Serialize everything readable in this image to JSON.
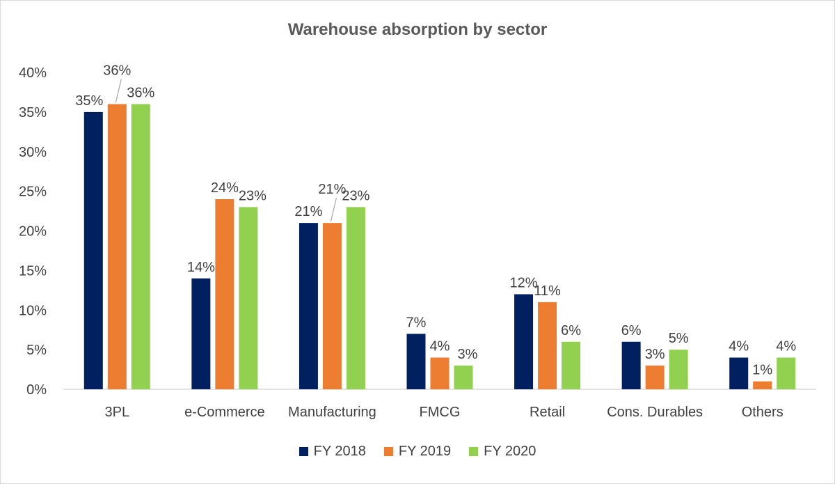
{
  "chart_data": {
    "type": "bar",
    "title": "Warehouse absorption by sector",
    "categories": [
      "3PL",
      "e-Commerce",
      "Manufacturing",
      "FMCG",
      "Retail",
      "Cons. Durables",
      "Others"
    ],
    "series": [
      {
        "name": "FY 2018",
        "color": "#002060",
        "values": [
          35,
          14,
          21,
          7,
          12,
          6,
          4
        ]
      },
      {
        "name": "FY 2019",
        "color": "#ED7D31",
        "values": [
          36,
          24,
          21,
          4,
          11,
          3,
          1
        ]
      },
      {
        "name": "FY 2020",
        "color": "#92D050",
        "values": [
          36,
          23,
          23,
          3,
          6,
          5,
          4
        ]
      }
    ],
    "data_labels": [
      [
        "35%",
        "14%",
        "21%",
        "7%",
        "12%",
        "6%",
        "4%"
      ],
      [
        "36%",
        "24%",
        "21%",
        "4%",
        "11%",
        "3%",
        "1%"
      ],
      [
        "36%",
        "23%",
        "23%",
        "3%",
        "6%",
        "5%",
        "4%"
      ]
    ],
    "ylim": [
      0,
      40
    ],
    "yticks": [
      "0%",
      "5%",
      "10%",
      "15%",
      "20%",
      "25%",
      "30%",
      "35%",
      "40%"
    ],
    "gridlines": false,
    "legend_position": "bottom"
  }
}
